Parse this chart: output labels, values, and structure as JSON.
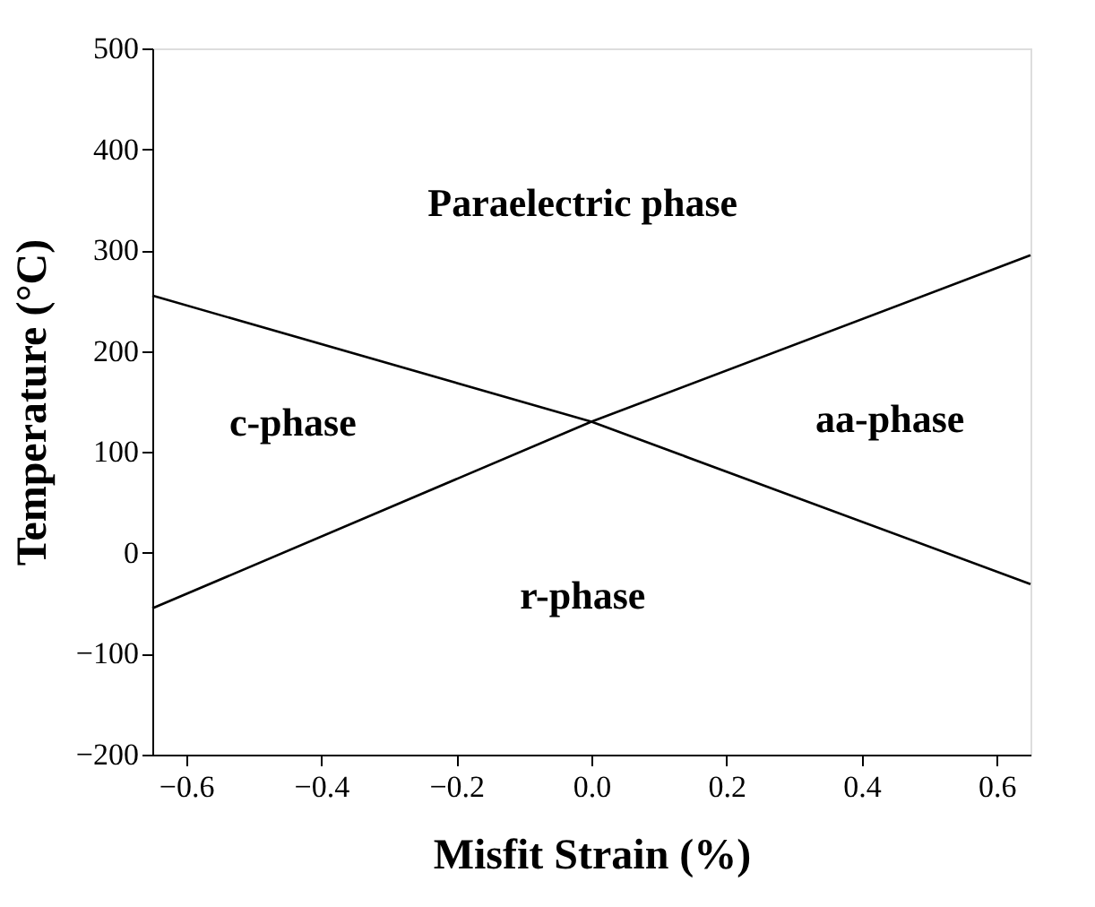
{
  "chart_data": {
    "type": "line",
    "xlabel": "Misfit Strain (%)",
    "ylabel": "Temperature (°C)",
    "xlim": [
      -0.65,
      0.65
    ],
    "ylim": [
      -200,
      500
    ],
    "xticks": [
      -0.6,
      -0.4,
      -0.2,
      {
        "value": 0,
        "label": "0.0"
      },
      0.2,
      0.4,
      0.6
    ],
    "yticks": [
      -200,
      -100,
      0,
      100,
      200,
      300,
      400,
      500
    ],
    "grid": false,
    "marker": "none",
    "line_style": "solid",
    "series": [
      {
        "color": "#000000",
        "x": [
          -0.65,
          0.0,
          0.65
        ],
        "values": [
          255,
          130,
          -31
        ]
      },
      {
        "color": "#000000",
        "x": [
          -0.65,
          0.0,
          0.65
        ],
        "values": [
          -55,
          130,
          295
        ]
      }
    ],
    "annotations": [
      "Paraelectric phase",
      "c-phase",
      "aa-phase",
      "r-phase"
    ]
  }
}
